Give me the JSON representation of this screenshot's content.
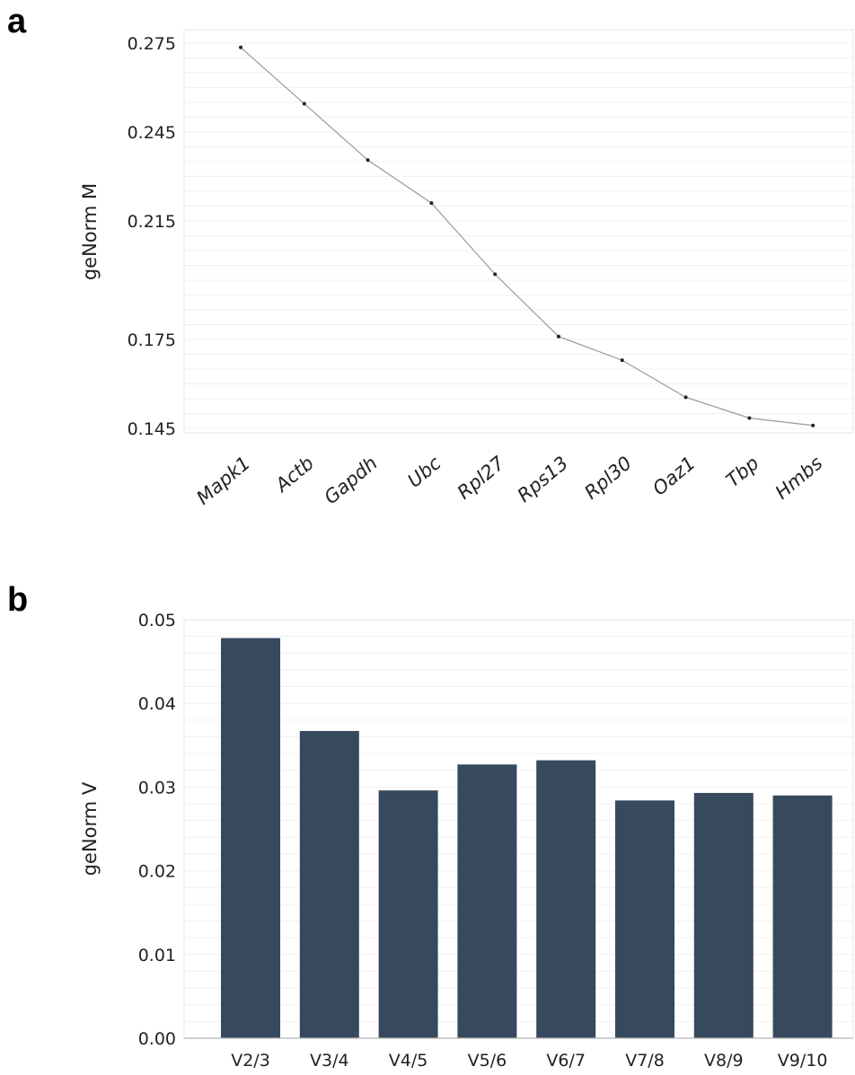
{
  "chart_data": [
    {
      "panel": "a",
      "type": "line",
      "ylabel": "geNorm M",
      "xlabel": "",
      "ylim": [
        0.1435,
        0.2795
      ],
      "yticks": [
        "0.275",
        "0.245",
        "0.215",
        "0.175",
        "0.145"
      ],
      "yticks_values": [
        0.275,
        0.245,
        0.215,
        0.175,
        0.145
      ],
      "categories": [
        "Mapk1",
        "Actb",
        "Gapdh",
        "Ubc",
        "Rpl27",
        "Rps13",
        "Rpl30",
        "Oaz1",
        "Tbp",
        "Hmbs"
      ],
      "values": [
        0.2735,
        0.2545,
        0.2355,
        0.221,
        0.197,
        0.176,
        0.168,
        0.1555,
        0.1485,
        0.146
      ],
      "grid": true,
      "line_color": "#999999",
      "marker_color": "#222222"
    },
    {
      "panel": "b",
      "type": "bar",
      "ylabel": "geNorm V",
      "xlabel": "",
      "ylim": [
        0,
        0.05
      ],
      "yticks": [
        "0.00",
        "0.01",
        "0.02",
        "0.03",
        "0.04",
        "0.05"
      ],
      "yticks_values": [
        0,
        0.01,
        0.02,
        0.03,
        0.04,
        0.05
      ],
      "categories": [
        "V2/3",
        "V3/4",
        "V4/5",
        "V5/6",
        "V6/7",
        "V7/8",
        "V8/9",
        "V9/10"
      ],
      "values": [
        0.0478,
        0.0367,
        0.0296,
        0.0327,
        0.0332,
        0.0284,
        0.0293,
        0.029
      ],
      "grid": true,
      "bar_color": "#36495d"
    }
  ],
  "labels": {
    "panel_a": "a",
    "panel_b": "b"
  }
}
